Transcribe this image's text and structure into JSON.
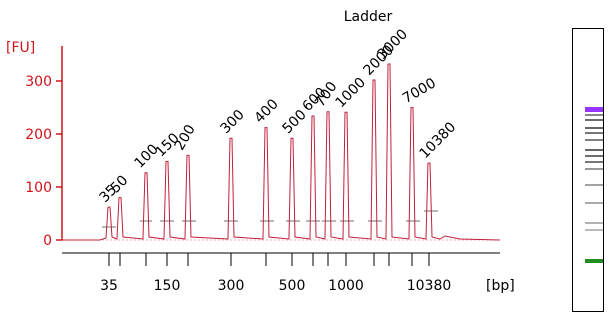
{
  "chart_data": {
    "type": "line",
    "title": "Ladder",
    "ylabel": "[FU]",
    "xlabel": "[bp]",
    "ylim": [
      0,
      340
    ],
    "yticks": [
      0,
      100,
      200,
      300
    ],
    "xtick_labels": [
      "35",
      "150",
      "300",
      "500",
      "1000",
      "10380"
    ],
    "grid": false,
    "series": [
      {
        "peaks": [
          {
            "label": "35",
            "fu": 62,
            "color": "#228b22"
          },
          {
            "label": "50",
            "fu": 80,
            "color": "#000000"
          },
          {
            "label": "100",
            "fu": 127,
            "color": "#000000"
          },
          {
            "label": "150",
            "fu": 148,
            "color": "#000000"
          },
          {
            "label": "200",
            "fu": 160,
            "color": "#000000"
          },
          {
            "label": "300",
            "fu": 192,
            "color": "#000000"
          },
          {
            "label": "400",
            "fu": 212,
            "color": "#000000"
          },
          {
            "label": "500",
            "fu": 192,
            "color": "#000000"
          },
          {
            "label": "600",
            "fu": 234,
            "color": "#000000"
          },
          {
            "label": "700",
            "fu": 242,
            "color": "#000000"
          },
          {
            "label": "1000",
            "fu": 241,
            "color": "#000000"
          },
          {
            "label": "2000",
            "fu": 302,
            "color": "#000000"
          },
          {
            "label": "3000",
            "fu": 332,
            "color": "#000000"
          },
          {
            "label": "7000",
            "fu": 250,
            "color": "#000000"
          },
          {
            "label": "10380",
            "fu": 145,
            "color": "#9933ff"
          }
        ]
      }
    ],
    "colors": {
      "trace": "#c0203a",
      "axis": "#d0141a",
      "lower_marker": "#228b22",
      "upper_marker": "#9933ff"
    }
  },
  "gel": {
    "colors": {
      "upper_marker": "#9933ff",
      "lower_marker": "#228b22",
      "band": "#555555"
    }
  }
}
